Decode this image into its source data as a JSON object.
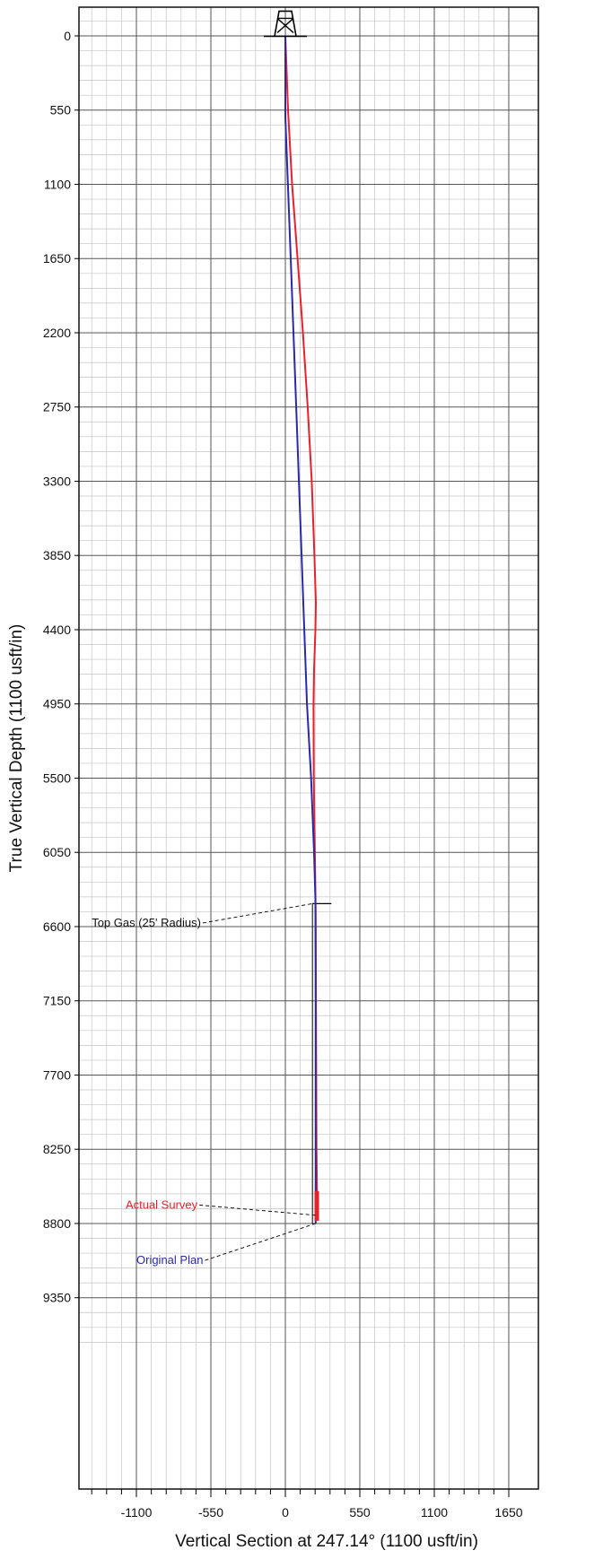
{
  "chart_data": {
    "type": "line",
    "xlabel": "Vertical Section at 247.14° (1100 usft/in)",
    "ylabel": "True Vertical Depth (1100 usft/in)",
    "xlim": [
      -1500,
      1750
    ],
    "ylim": [
      9700,
      -180
    ],
    "y_inverted": true,
    "grid": true,
    "x_ticks": [
      -1100,
      -550,
      0,
      550,
      1100,
      1650
    ],
    "y_ticks": [
      0,
      550,
      1100,
      1650,
      2200,
      2750,
      3300,
      3850,
      4400,
      4950,
      5500,
      6050,
      6600,
      7150,
      7700,
      8250,
      8800,
      9350
    ],
    "series": [
      {
        "name": "Actual Survey",
        "color": "#e8202a",
        "x": [
          0,
          20,
          50,
          90,
          130,
          165,
          195,
          215,
          225,
          222,
          212,
          208,
          210,
          218,
          224,
          226,
          228,
          230,
          235
        ],
        "y": [
          0,
          550,
          1100,
          1650,
          2200,
          2750,
          3300,
          3850,
          4200,
          4400,
          4700,
          4950,
          5500,
          6050,
          6500,
          7150,
          7700,
          8250,
          8700
        ]
      },
      {
        "name": "Original Plan",
        "color": "#2a2aa8",
        "x": [
          0,
          0,
          40,
          80,
          120,
          160,
          190,
          212,
          222,
          224,
          224,
          224,
          224
        ],
        "y": [
          0,
          600,
          1650,
          2750,
          3850,
          4950,
          5500,
          6050,
          6400,
          7150,
          7700,
          8250,
          8800
        ]
      }
    ],
    "annotations": [
      {
        "text": "Top Gas (25' Radius)",
        "color": "#111111",
        "label_x": -1430,
        "label_y": 6600,
        "target_x": 200,
        "target_y": 6430
      },
      {
        "text": "Actual Survey",
        "color": "#e8202a",
        "label_x": -1180,
        "label_y": 8690,
        "target_x": 235,
        "target_y": 8740
      },
      {
        "text": "Original Plan",
        "color": "#2a2aa8",
        "label_x": -1100,
        "label_y": 9100,
        "target_x": 224,
        "target_y": 8800
      }
    ],
    "target_box": {
      "x_range": [
        200,
        340
      ],
      "y_range": [
        6430,
        8800
      ]
    },
    "rig_symbol": {
      "x": 0,
      "y": -130
    }
  }
}
